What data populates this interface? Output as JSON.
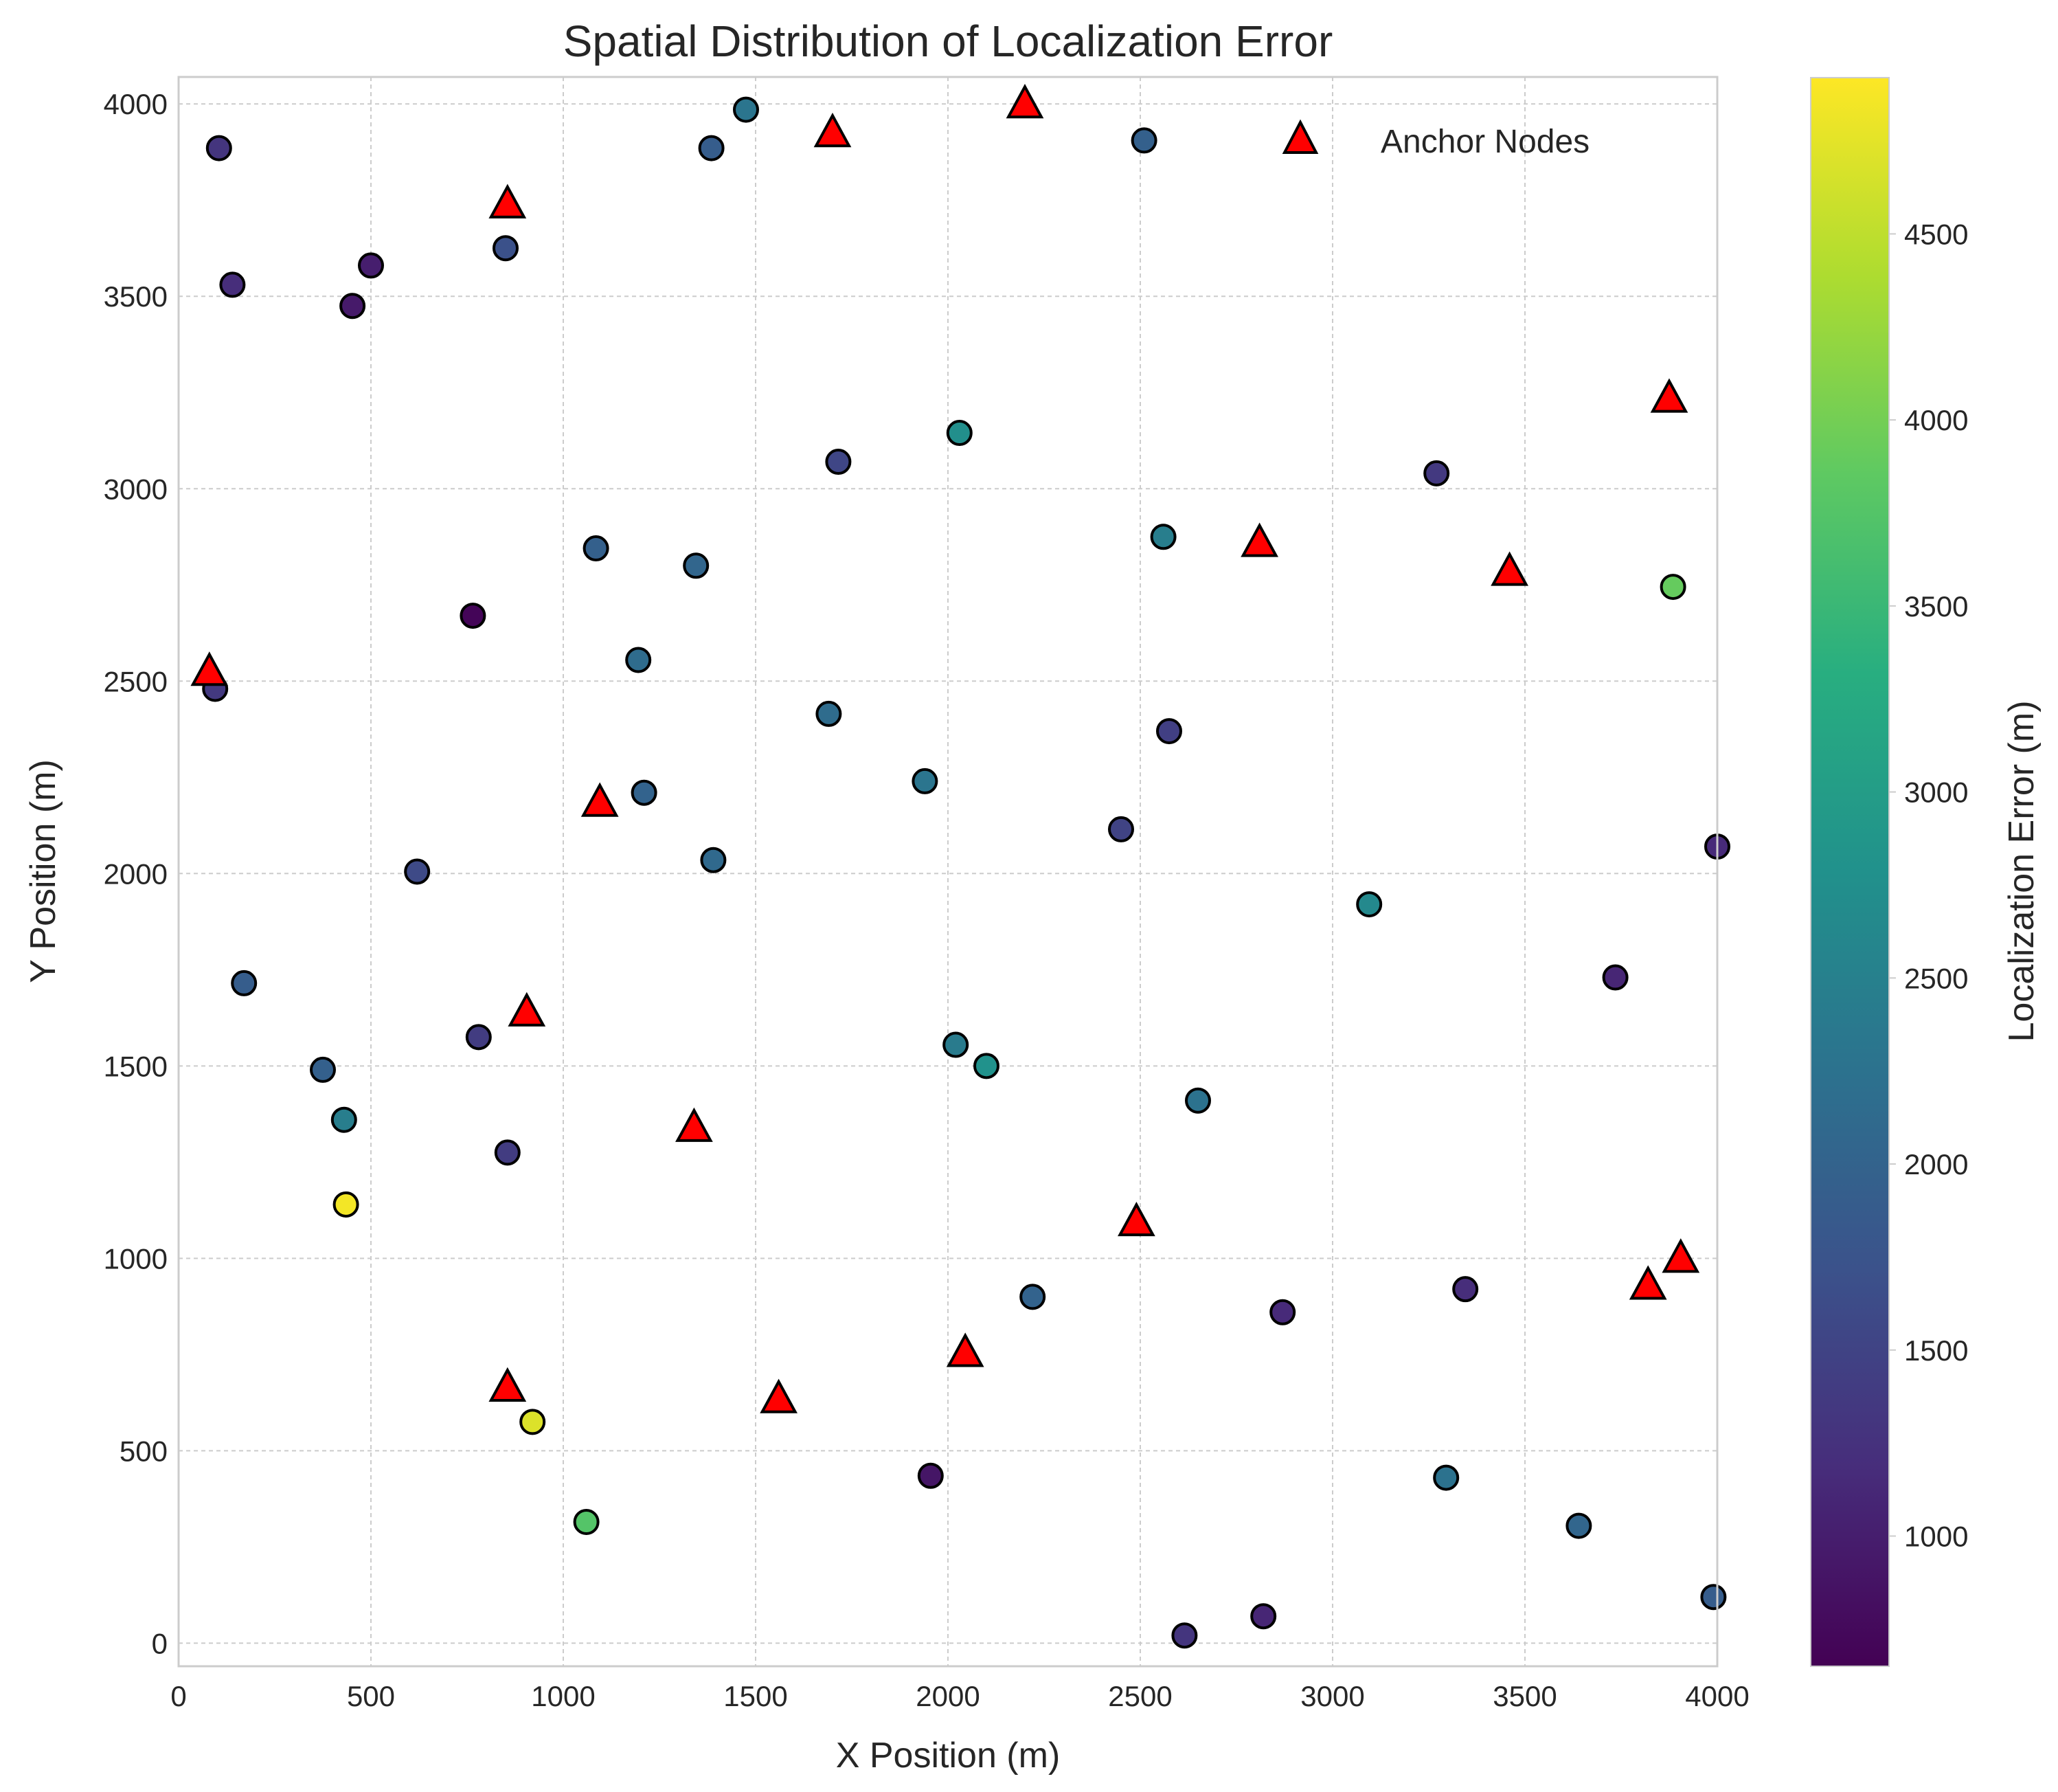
{
  "chart_data": {
    "type": "scatter",
    "title": "Spatial Distribution of Localization Error",
    "xlabel": "X Position (m)",
    "ylabel": "Y Position (m)",
    "xlim": [
      0,
      4000
    ],
    "ylim": [
      -60,
      4070
    ],
    "xticks": [
      0,
      500,
      1000,
      1500,
      2000,
      2500,
      3000,
      3500,
      4000
    ],
    "yticks": [
      0,
      500,
      1000,
      1500,
      2000,
      2500,
      3000,
      3500,
      4000
    ],
    "grid": true,
    "colorbar": {
      "label": "Localization Error (m)",
      "colormap": "viridis",
      "range": [
        650,
        4920
      ],
      "ticks": [
        1000,
        1500,
        2000,
        2500,
        3000,
        3500,
        4000,
        4500
      ]
    },
    "legend": {
      "position": "top-right",
      "entries": [
        "Anchor Nodes"
      ]
    },
    "sensors": {
      "x": [
        105,
        140,
        500,
        452,
        850,
        1385,
        1475,
        2510,
        1085,
        1345,
        1715,
        2030,
        2560,
        3270,
        3885,
        765,
        1195,
        95,
        1690,
        1940,
        2575,
        2450,
        1210,
        620,
        1390,
        3095,
        3735,
        4000,
        170,
        375,
        430,
        780,
        855,
        2020,
        2100,
        2650,
        435,
        2220,
        2870,
        3345,
        920,
        1060,
        1955,
        3295,
        3640,
        3990,
        2615,
        2820
      ],
      "y": [
        3885,
        3530,
        3580,
        3475,
        3625,
        3885,
        3985,
        3905,
        2845,
        2800,
        3070,
        3145,
        2875,
        3040,
        2745,
        2670,
        2555,
        2480,
        2415,
        2240,
        2370,
        2115,
        2210,
        2005,
        2035,
        1920,
        1730,
        2070,
        1715,
        1490,
        1360,
        1575,
        1275,
        1555,
        1500,
        1410,
        1140,
        900,
        860,
        920,
        575,
        315,
        435,
        430,
        305,
        120,
        20,
        70
      ],
      "error": [
        1300,
        1200,
        1000,
        950,
        1700,
        1900,
        2300,
        1950,
        1950,
        2050,
        1550,
        2750,
        2450,
        1350,
        3900,
        700,
        2150,
        1350,
        2150,
        2300,
        1450,
        1500,
        2000,
        1600,
        2100,
        2650,
        1100,
        1150,
        1900,
        1950,
        2450,
        1400,
        1400,
        2400,
        2800,
        2250,
        4850,
        2000,
        1150,
        1200,
        4700,
        3750,
        900,
        2250,
        2050,
        1900,
        1300,
        1100
      ]
    },
    "anchors": {
      "name": "Anchor Nodes",
      "color": "#ff0000",
      "x": [
        855,
        1700,
        2200,
        3875,
        2810,
        3460,
        80,
        1095,
        905,
        1340,
        2490,
        3820,
        3905,
        855,
        1560,
        2045
      ],
      "y": [
        3740,
        3925,
        4000,
        3235,
        2860,
        2785,
        2525,
        2185,
        1640,
        1340,
        1095,
        930,
        1000,
        665,
        635,
        755
      ]
    }
  }
}
